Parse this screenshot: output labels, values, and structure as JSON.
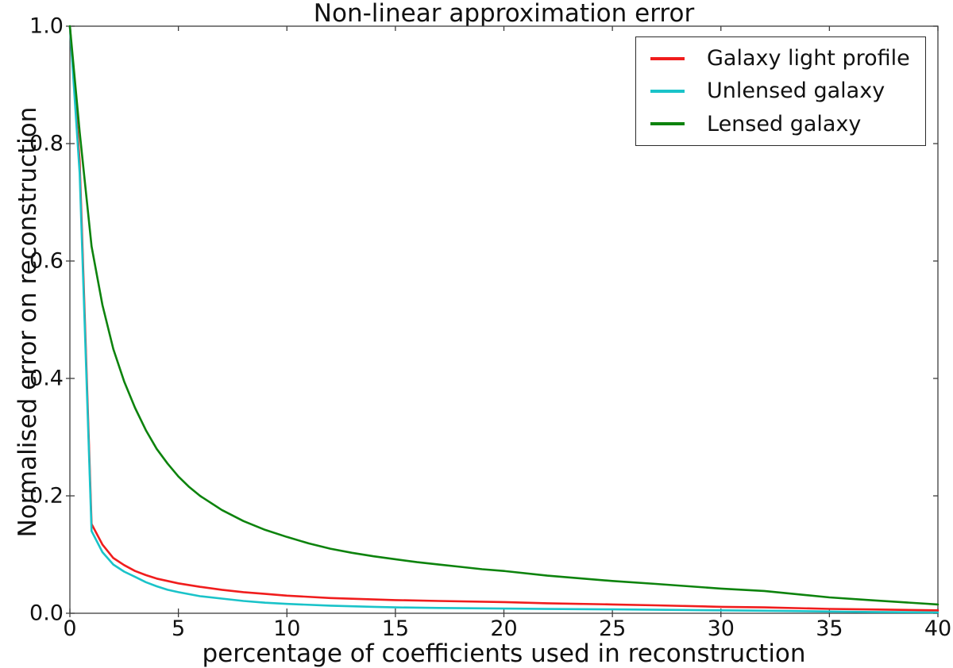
{
  "chart_data": {
    "type": "line",
    "title": "Non-linear approximation error",
    "xlabel": "percentage of coefficients used in reconstruction",
    "ylabel": "Normalised error on reconstruction",
    "xlim": [
      0,
      40
    ],
    "ylim": [
      0.0,
      1.0
    ],
    "x_ticks": [
      0,
      5,
      10,
      15,
      20,
      25,
      30,
      35,
      40
    ],
    "x_tick_labels": [
      "0",
      "5",
      "10",
      "15",
      "20",
      "25",
      "30",
      "35",
      "40"
    ],
    "y_ticks": [
      0.0,
      0.2,
      0.4,
      0.6,
      0.8,
      1.0
    ],
    "y_tick_labels": [
      "0.0",
      "0.2",
      "0.4",
      "0.6",
      "0.8",
      "1.0"
    ],
    "grid": false,
    "legend_position": "upper right",
    "frame_color": "#3d3d3d",
    "series": [
      {
        "name": "Galaxy light profile",
        "color": "#f01d1d",
        "points": [
          [
            0,
            1.0
          ],
          [
            0.45,
            0.77
          ],
          [
            1,
            0.152
          ],
          [
            1.5,
            0.117
          ],
          [
            2,
            0.094
          ],
          [
            2.5,
            0.082
          ],
          [
            3,
            0.072
          ],
          [
            3.5,
            0.065
          ],
          [
            4,
            0.059
          ],
          [
            4.5,
            0.055
          ],
          [
            5,
            0.051
          ],
          [
            6,
            0.045
          ],
          [
            7,
            0.04
          ],
          [
            8,
            0.036
          ],
          [
            9,
            0.033
          ],
          [
            10,
            0.03
          ],
          [
            12,
            0.026
          ],
          [
            14,
            0.0235
          ],
          [
            15,
            0.0225
          ],
          [
            17,
            0.021
          ],
          [
            20,
            0.019
          ],
          [
            22,
            0.017
          ],
          [
            25,
            0.015
          ],
          [
            27,
            0.0135
          ],
          [
            30,
            0.011
          ],
          [
            32,
            0.01
          ],
          [
            35,
            0.0075
          ],
          [
            37,
            0.0065
          ],
          [
            40,
            0.005
          ]
        ]
      },
      {
        "name": "Unlensed galaxy",
        "color": "#1ac3c9",
        "points": [
          [
            0,
            1.0
          ],
          [
            0.45,
            0.75
          ],
          [
            1,
            0.14
          ],
          [
            1.5,
            0.104
          ],
          [
            2,
            0.083
          ],
          [
            2.5,
            0.071
          ],
          [
            3,
            0.062
          ],
          [
            3.5,
            0.053
          ],
          [
            4,
            0.046
          ],
          [
            4.5,
            0.04
          ],
          [
            5,
            0.036
          ],
          [
            6,
            0.029
          ],
          [
            7,
            0.025
          ],
          [
            8,
            0.021
          ],
          [
            9,
            0.018
          ],
          [
            10,
            0.016
          ],
          [
            12,
            0.013
          ],
          [
            14,
            0.011
          ],
          [
            15,
            0.01
          ],
          [
            17,
            0.009
          ],
          [
            20,
            0.008
          ],
          [
            22,
            0.0073
          ],
          [
            25,
            0.0066
          ],
          [
            27,
            0.006
          ],
          [
            30,
            0.005
          ],
          [
            32,
            0.0043
          ],
          [
            35,
            0.003
          ],
          [
            37,
            0.0022
          ],
          [
            40,
            0.0013
          ]
        ]
      },
      {
        "name": "Lensed galaxy",
        "color": "#0d830d",
        "points": [
          [
            0,
            1.0
          ],
          [
            0.45,
            0.82
          ],
          [
            1,
            0.625
          ],
          [
            1.5,
            0.525
          ],
          [
            2,
            0.45
          ],
          [
            2.5,
            0.395
          ],
          [
            3,
            0.35
          ],
          [
            3.5,
            0.312
          ],
          [
            4,
            0.28
          ],
          [
            4.5,
            0.255
          ],
          [
            5,
            0.233
          ],
          [
            5.5,
            0.215
          ],
          [
            6,
            0.2
          ],
          [
            7,
            0.176
          ],
          [
            8,
            0.157
          ],
          [
            9,
            0.142
          ],
          [
            10,
            0.13
          ],
          [
            11,
            0.119
          ],
          [
            12,
            0.11
          ],
          [
            13,
            0.103
          ],
          [
            14,
            0.097
          ],
          [
            15,
            0.092
          ],
          [
            16,
            0.087
          ],
          [
            17,
            0.083
          ],
          [
            18,
            0.079
          ],
          [
            19,
            0.075
          ],
          [
            20,
            0.072
          ],
          [
            22,
            0.064
          ],
          [
            25,
            0.055
          ],
          [
            27,
            0.05
          ],
          [
            30,
            0.042
          ],
          [
            32,
            0.038
          ],
          [
            35,
            0.027
          ],
          [
            37,
            0.022
          ],
          [
            40,
            0.015
          ]
        ]
      }
    ]
  }
}
